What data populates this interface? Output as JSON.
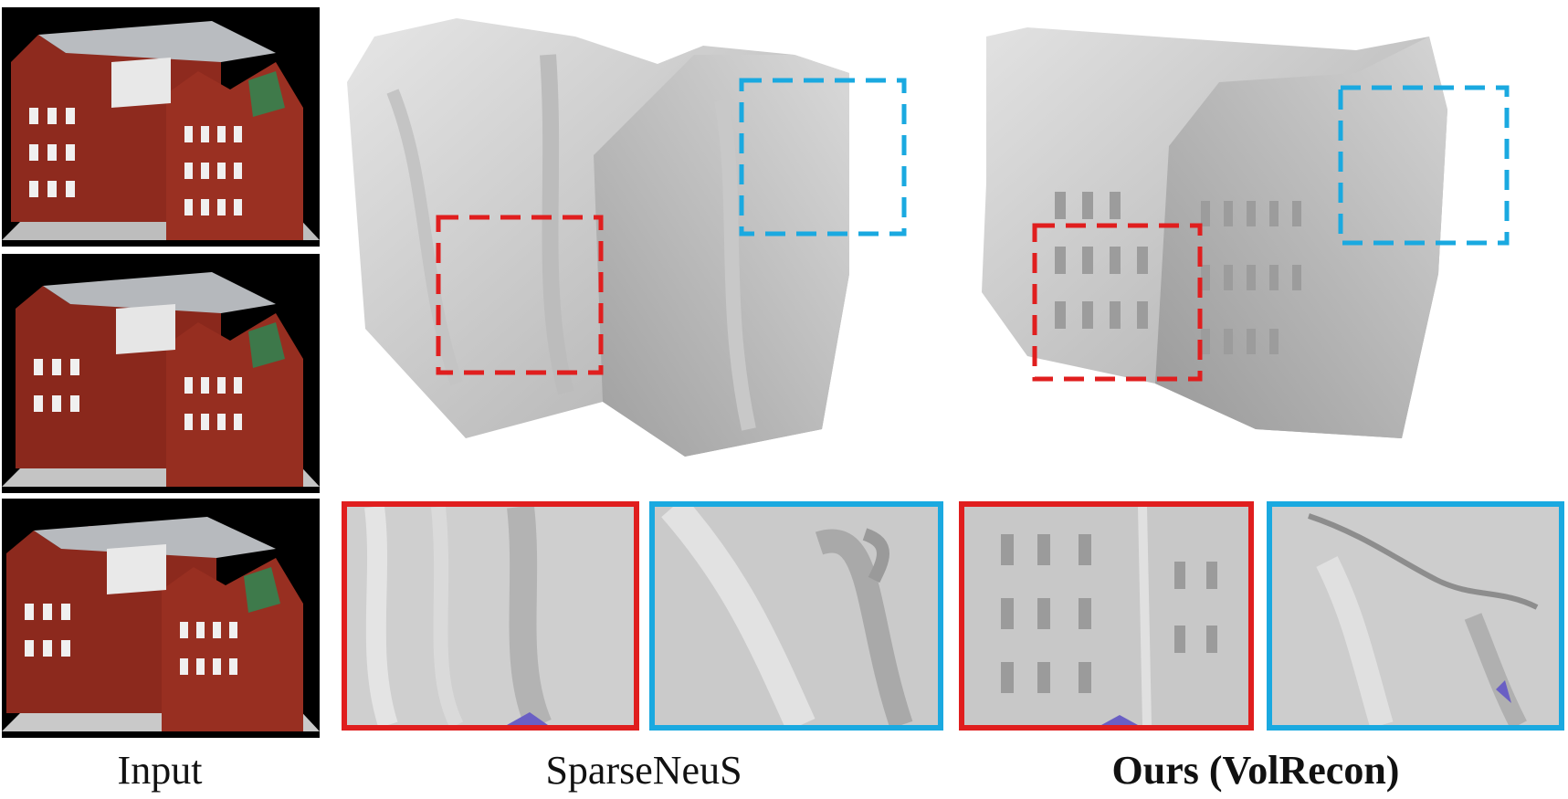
{
  "figure": {
    "captions": {
      "input": "Input",
      "baseline": "SparseNeuS",
      "ours": "Ours (VolRecon)"
    },
    "highlight_colors": {
      "red": "#e01e1e",
      "blue": "#1aa9e0"
    }
  }
}
